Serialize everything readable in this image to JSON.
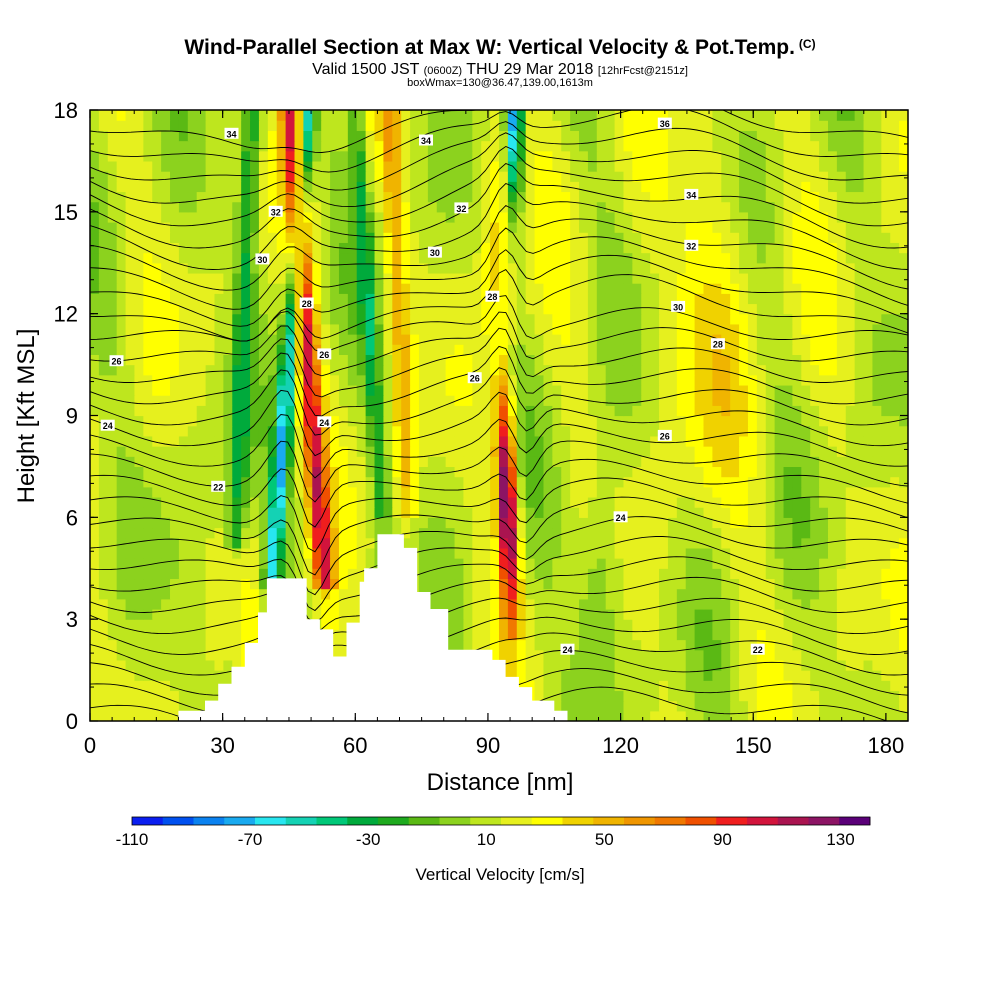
{
  "header": {
    "title": "Wind-Parallel Section at Max W: Vertical Velocity & Pot.Temp.",
    "copyright": "(C)",
    "valid_main_a": "Valid 1500 JST",
    "valid_zulu": "(0600Z)",
    "valid_main_b": "THU 29 Mar 2018",
    "valid_fcst": "[12hrFcst@2151z]",
    "box_info": "boxWmax=130@36.47,139.00,1613m"
  },
  "chart_data": {
    "type": "heatmap",
    "title": "Wind-Parallel Section at Max W: Vertical Velocity & Pot.Temp.",
    "xlabel": "Distance [nm]",
    "ylabel": "Height [Kft MSL]",
    "xlim": [
      0,
      185
    ],
    "ylim": [
      0,
      18
    ],
    "x_ticks": [
      "0",
      "30",
      "60",
      "90",
      "120",
      "150",
      "180"
    ],
    "y_ticks": [
      "0",
      "3",
      "6",
      "9",
      "12",
      "15",
      "18"
    ],
    "grid": false,
    "colorbar": {
      "title": "Vertical Velocity [cm/s]",
      "tick_labels": [
        "-110",
        "-70",
        "-30",
        "10",
        "50",
        "90",
        "130"
      ],
      "colors": [
        "#0a1ef0",
        "#0050f0",
        "#0a82f0",
        "#19aaf0",
        "#28e6f0",
        "#14d2b4",
        "#00c878",
        "#00aa3c",
        "#1eaa1e",
        "#5ab914",
        "#8cd21e",
        "#bee61e",
        "#e6f01e",
        "#ffff00",
        "#f0d200",
        "#f0b400",
        "#f09600",
        "#f07800",
        "#f05000",
        "#f01e1e",
        "#d2143c",
        "#aa1450",
        "#8c1464",
        "#5a0078"
      ],
      "vmin": -110,
      "vmax": 130,
      "step": 10
    },
    "updrafts": [
      {
        "center_x": 95,
        "base_kft": 2.5,
        "top_kft": 11,
        "max_w": 130
      },
      {
        "center_x": 47,
        "base_kft": 4,
        "top_kft": 18,
        "max_w": 80
      },
      {
        "center_x": 72,
        "base_kft": 6,
        "top_kft": 18,
        "max_w": 40
      }
    ],
    "downdrafts": [
      {
        "center_x": 50,
        "base_kft": 4,
        "top_kft": 18,
        "min_w": -80
      },
      {
        "center_x": 95,
        "base_kft": 14,
        "top_kft": 18,
        "min_w": -70
      }
    ],
    "terrain_kft": [
      [
        0,
        0
      ],
      [
        20,
        0
      ],
      [
        20,
        0.3
      ],
      [
        26,
        0.3
      ],
      [
        26,
        0.6
      ],
      [
        29,
        0.6
      ],
      [
        29,
        1.1
      ],
      [
        32,
        1.1
      ],
      [
        32,
        1.6
      ],
      [
        35,
        1.6
      ],
      [
        35,
        2.3
      ],
      [
        38,
        2.3
      ],
      [
        38,
        3.2
      ],
      [
        40,
        3.2
      ],
      [
        40,
        4.2
      ],
      [
        49,
        4.2
      ],
      [
        49,
        3
      ],
      [
        52,
        3
      ],
      [
        52,
        2.7
      ],
      [
        55,
        2.7
      ],
      [
        55,
        1.9
      ],
      [
        58,
        1.9
      ],
      [
        58,
        2.9
      ],
      [
        61,
        2.9
      ],
      [
        61,
        4.1
      ],
      [
        62,
        4.1
      ],
      [
        62,
        4.5
      ],
      [
        65,
        4.5
      ],
      [
        65,
        5.5
      ],
      [
        71,
        5.5
      ],
      [
        71,
        5.1
      ],
      [
        74,
        5.1
      ],
      [
        74,
        3.8
      ],
      [
        77,
        3.8
      ],
      [
        77,
        3.3
      ],
      [
        81,
        3.3
      ],
      [
        81,
        2.1
      ],
      [
        91,
        2.1
      ],
      [
        91,
        1.8
      ],
      [
        94,
        1.8
      ],
      [
        94,
        1.3
      ],
      [
        97,
        1.3
      ],
      [
        97,
        1
      ],
      [
        100,
        1
      ],
      [
        100,
        0.6
      ],
      [
        105,
        0.6
      ],
      [
        105,
        0.3
      ],
      [
        108,
        0.3
      ],
      [
        108,
        0
      ],
      [
        185,
        0
      ]
    ],
    "theta_contour_labels": [
      {
        "text": "34",
        "x": 32,
        "y": 17.3
      },
      {
        "text": "34",
        "x": 76,
        "y": 17.1
      },
      {
        "text": "36",
        "x": 130,
        "y": 17.6
      },
      {
        "text": "34",
        "x": 136,
        "y": 15.5
      },
      {
        "text": "32",
        "x": 42,
        "y": 15
      },
      {
        "text": "32",
        "x": 84,
        "y": 15.1
      },
      {
        "text": "32",
        "x": 136,
        "y": 14
      },
      {
        "text": "30",
        "x": 39,
        "y": 13.6
      },
      {
        "text": "30",
        "x": 78,
        "y": 13.8
      },
      {
        "text": "30",
        "x": 133,
        "y": 12.2
      },
      {
        "text": "28",
        "x": 49,
        "y": 12.3
      },
      {
        "text": "28",
        "x": 91,
        "y": 12.5
      },
      {
        "text": "28",
        "x": 142,
        "y": 11.1
      },
      {
        "text": "26",
        "x": 6,
        "y": 10.6
      },
      {
        "text": "26",
        "x": 53,
        "y": 10.8
      },
      {
        "text": "26",
        "x": 87,
        "y": 10.1
      },
      {
        "text": "26",
        "x": 130,
        "y": 8.4
      },
      {
        "text": "24",
        "x": 4,
        "y": 8.7
      },
      {
        "text": "24",
        "x": 53,
        "y": 8.8
      },
      {
        "text": "24",
        "x": 120,
        "y": 6
      },
      {
        "text": "24",
        "x": 108,
        "y": 2.1
      },
      {
        "text": "22",
        "x": 29,
        "y": 6.9
      },
      {
        "text": "22",
        "x": 151,
        "y": 2.1
      }
    ]
  }
}
